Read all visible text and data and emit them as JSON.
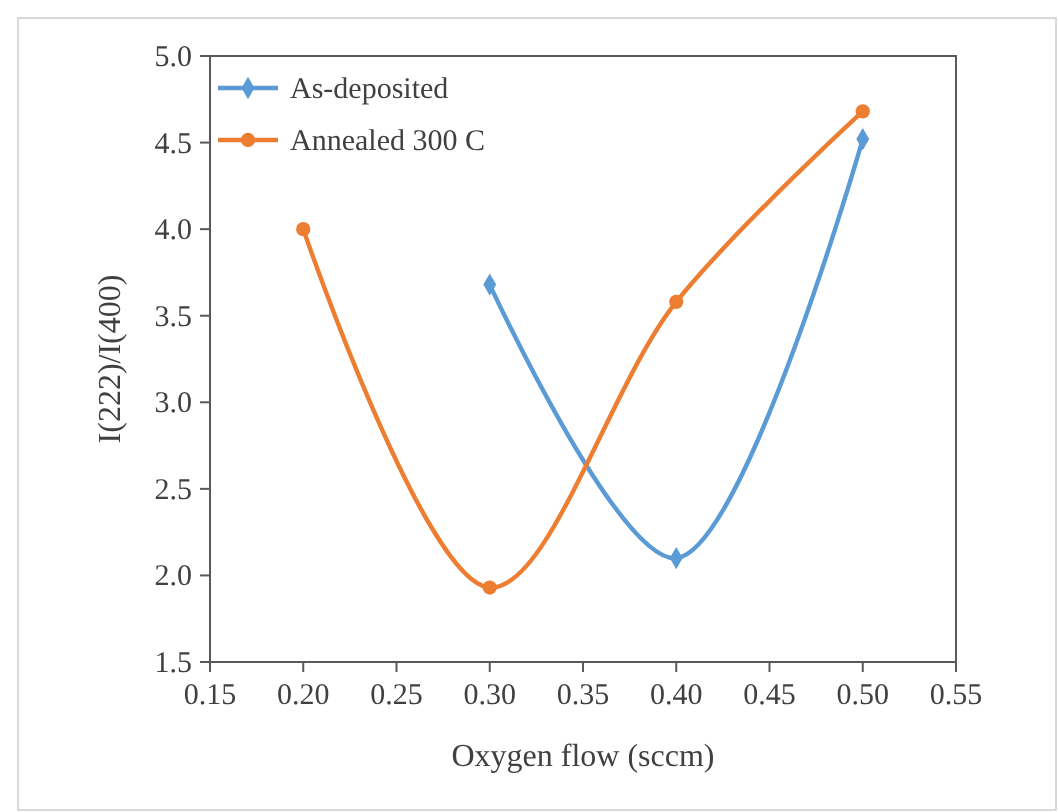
{
  "chart_data": {
    "type": "line",
    "xlabel": "Oxygen flow (sccm)",
    "ylabel": "I(222)/I(400)",
    "xlim": [
      0.15,
      0.55
    ],
    "xticks": [
      0.15,
      {
        "value": 0.2,
        "label": "0.20"
      },
      0.25,
      {
        "value": 0.3,
        "label": "0.30"
      },
      0.35,
      {
        "value": 0.4,
        "label": "0.40"
      },
      0.45,
      {
        "value": 0.5,
        "label": "0.50"
      },
      0.55
    ],
    "ylim": [
      1.5,
      5.0
    ],
    "yticks": [
      1.5,
      {
        "value": 2,
        "label": "2.0"
      },
      2.5,
      {
        "value": 3,
        "label": "3.0"
      },
      3.5,
      {
        "value": 4,
        "label": "4.0"
      },
      4.5,
      {
        "value": 5,
        "label": "5.0"
      }
    ],
    "grid": false,
    "legend": "top left",
    "line_style": "solid",
    "series": [
      {
        "name": "As-deposited",
        "color": "#5b9bd5",
        "marker": "diamond",
        "x": [
          0.3,
          0.4,
          0.5
        ],
        "values": [
          3.68,
          2.1,
          4.52
        ]
      },
      {
        "name": "Annealed 300 C",
        "color": "#ed7d31",
        "marker": "circle",
        "x": [
          0.2,
          0.3,
          0.4,
          0.5
        ],
        "values": [
          4.0,
          1.93,
          3.58,
          4.68
        ]
      }
    ]
  }
}
